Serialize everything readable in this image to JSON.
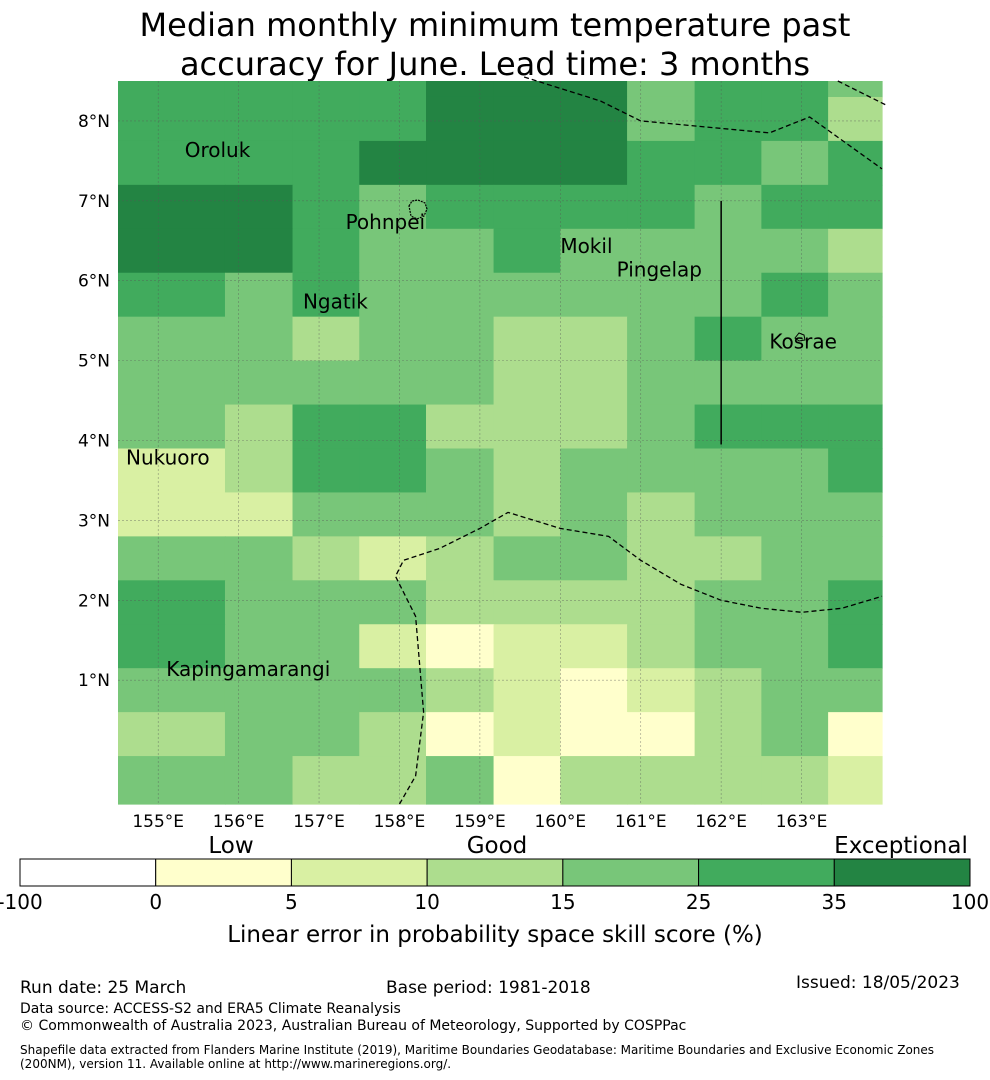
{
  "title": {
    "line1": "Median monthly minimum temperature past",
    "line2": "accuracy for June. Lead time: 3 months"
  },
  "map": {
    "lon_min": 154.5,
    "lon_max": 164.0,
    "lat_min": -0.55,
    "lat_max": 8.5,
    "lon_ticks": [
      {
        "value": 155,
        "label": "155°E"
      },
      {
        "value": 156,
        "label": "156°E"
      },
      {
        "value": 157,
        "label": "157°E"
      },
      {
        "value": 158,
        "label": "158°E"
      },
      {
        "value": 159,
        "label": "159°E"
      },
      {
        "value": 160,
        "label": "160°E"
      },
      {
        "value": 161,
        "label": "161°E"
      },
      {
        "value": 162,
        "label": "162°E"
      },
      {
        "value": 163,
        "label": "163°E"
      }
    ],
    "lat_ticks": [
      {
        "value": 1,
        "label": "1°N"
      },
      {
        "value": 2,
        "label": "2°N"
      },
      {
        "value": 3,
        "label": "3°N"
      },
      {
        "value": 4,
        "label": "4°N"
      },
      {
        "value": 5,
        "label": "5°N"
      },
      {
        "value": 6,
        "label": "6°N"
      },
      {
        "value": 7,
        "label": "7°N"
      },
      {
        "value": 8,
        "label": "8°N"
      }
    ],
    "grid_lon_edges": [
      154.5,
      155.0,
      155.83,
      156.67,
      157.5,
      158.33,
      159.17,
      160.0,
      160.83,
      161.67,
      162.5,
      163.33,
      164.0
    ],
    "grid_lat_edges": [
      8.5,
      8.3,
      7.75,
      7.2,
      6.65,
      6.1,
      5.55,
      5.0,
      4.45,
      3.9,
      3.35,
      2.8,
      2.25,
      1.7,
      1.15,
      0.6,
      0.05,
      -0.55
    ],
    "class_colors": [
      "#ffffff",
      "#ffffcc",
      "#d9f0a3",
      "#addd8e",
      "#78c679",
      "#41ab5d",
      "#238443"
    ],
    "grid_classes": [
      [
        5,
        5,
        5,
        5,
        5,
        6,
        6,
        6,
        4,
        5,
        5,
        4
      ],
      [
        5,
        5,
        5,
        5,
        5,
        6,
        6,
        6,
        4,
        5,
        5,
        3
      ],
      [
        5,
        5,
        5,
        5,
        6,
        6,
        6,
        6,
        5,
        5,
        4,
        5
      ],
      [
        6,
        6,
        6,
        5,
        4,
        5,
        5,
        5,
        5,
        4,
        5,
        5
      ],
      [
        6,
        6,
        6,
        5,
        4,
        4,
        5,
        4,
        4,
        4,
        4,
        3
      ],
      [
        5,
        5,
        4,
        5,
        4,
        4,
        4,
        4,
        4,
        4,
        5,
        4
      ],
      [
        4,
        4,
        4,
        3,
        4,
        4,
        3,
        3,
        4,
        5,
        4,
        4
      ],
      [
        4,
        4,
        4,
        4,
        4,
        4,
        3,
        3,
        4,
        4,
        4,
        4
      ],
      [
        4,
        4,
        3,
        5,
        5,
        3,
        3,
        3,
        4,
        5,
        5,
        5
      ],
      [
        2,
        2,
        3,
        5,
        5,
        4,
        3,
        4,
        4,
        4,
        4,
        5
      ],
      [
        2,
        2,
        2,
        4,
        4,
        4,
        3,
        4,
        3,
        4,
        4,
        4
      ],
      [
        4,
        4,
        4,
        3,
        2,
        3,
        4,
        4,
        3,
        3,
        4,
        4
      ],
      [
        5,
        5,
        4,
        4,
        4,
        3,
        3,
        3,
        3,
        4,
        4,
        5
      ],
      [
        5,
        5,
        4,
        4,
        2,
        1,
        2,
        2,
        3,
        4,
        4,
        5
      ],
      [
        4,
        4,
        4,
        4,
        4,
        3,
        2,
        1,
        2,
        3,
        4,
        4
      ],
      [
        3,
        3,
        4,
        4,
        3,
        1,
        2,
        1,
        1,
        3,
        4,
        1
      ],
      [
        4,
        4,
        4,
        3,
        3,
        4,
        1,
        3,
        3,
        3,
        3,
        2
      ]
    ],
    "eez_lines": [
      [
        [
          159.55,
          8.55
        ],
        [
          160.5,
          8.25
        ],
        [
          161.0,
          8.0
        ],
        [
          162.6,
          7.85
        ],
        [
          163.1,
          8.05
        ],
        [
          164.0,
          7.4
        ]
      ],
      [
        [
          163.45,
          8.5
        ],
        [
          164.05,
          8.2
        ]
      ],
      [
        [
          158.0,
          -0.55
        ],
        [
          158.2,
          -0.2
        ],
        [
          158.3,
          0.6
        ],
        [
          158.2,
          1.8
        ],
        [
          157.95,
          2.3
        ],
        [
          158.05,
          2.5
        ],
        [
          158.5,
          2.65
        ],
        [
          159.0,
          2.9
        ],
        [
          159.35,
          3.1
        ],
        [
          160.0,
          2.9
        ],
        [
          160.6,
          2.8
        ],
        [
          161.0,
          2.5
        ],
        [
          161.5,
          2.2
        ],
        [
          162.0,
          2.0
        ],
        [
          162.5,
          1.9
        ],
        [
          163.0,
          1.85
        ],
        [
          163.5,
          1.9
        ],
        [
          164.0,
          2.05
        ]
      ]
    ],
    "boundary_segment": [
      [
        162.0,
        7.0
      ],
      [
        162.0,
        3.95
      ]
    ],
    "islands": [
      {
        "name": "Oroluk",
        "lon": 155.33,
        "lat": 7.55
      },
      {
        "name": "Pohnpei",
        "lon": 157.33,
        "lat": 6.65
      },
      {
        "name": "Mokil",
        "lon": 160.0,
        "lat": 6.35
      },
      {
        "name": "Pingelap",
        "lon": 160.7,
        "lat": 6.05
      },
      {
        "name": "Ngatik",
        "lon": 156.8,
        "lat": 5.65
      },
      {
        "name": "Kosrae",
        "lon": 162.6,
        "lat": 5.15
      },
      {
        "name": "Nukuoro",
        "lon": 154.6,
        "lat": 3.7
      },
      {
        "name": "Kapingamarangi",
        "lon": 155.1,
        "lat": 1.05
      }
    ]
  },
  "legend": {
    "categories": [
      "Low",
      "Good",
      "Exceptional"
    ],
    "ticks": [
      "-100",
      "0",
      "5",
      "10",
      "15",
      "25",
      "35",
      "100"
    ],
    "label": "Linear error in probability space skill score (%)"
  },
  "footer": {
    "run_date": "Run date: 25 March",
    "base_period": "Base period: 1981-2018",
    "issued": "Issued: 18/05/2023",
    "data_source": "Data source: ACCESS-S2 and ERA5 Climate Reanalysis",
    "copyright": "© Commonwealth of Australia 2023, Australian Bureau of Meteorology, Supported by COSPPac",
    "shapefile_line1": "Shapefile data extracted from Flanders Marine Institute (2019), Maritime Boundaries Geodatabase: Maritime Boundaries and Exclusive Economic Zones",
    "shapefile_line2": "(200NM), version 11. Available online at http://www.marineregions.org/."
  }
}
